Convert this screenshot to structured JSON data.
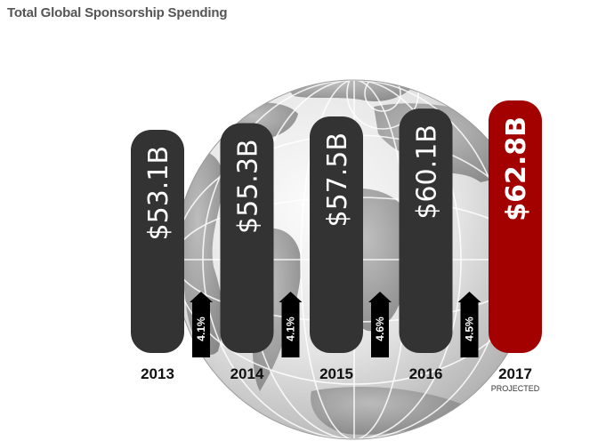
{
  "title": "Total Global Sponsorship Spending",
  "colors": {
    "bar": "#333333",
    "projected_bar": "#a30000",
    "arrow": "#000000",
    "globe_dark": "#8f8f8f",
    "globe_light": "#f2f2f2"
  },
  "chart_data": {
    "type": "bar",
    "title": "Total Global Sponsorship Spending",
    "xlabel": "",
    "ylabel": "",
    "unit": "$B",
    "categories": [
      "2013",
      "2014",
      "2015",
      "2016",
      "2017"
    ],
    "values": [
      53.1,
      55.3,
      57.5,
      60.1,
      62.8
    ],
    "value_labels": [
      "$53.1B",
      "$55.3B",
      "$57.5B",
      "$60.1B",
      "$62.8B"
    ],
    "category_sublabels": [
      "",
      "",
      "",
      "",
      "PROJECTED"
    ],
    "projected": [
      false,
      false,
      false,
      false,
      true
    ],
    "growth_labels": [
      "4.1%",
      "4.1%",
      "4.6%",
      "4.5%"
    ],
    "growth_values": [
      4.1,
      4.1,
      4.6,
      4.5
    ]
  }
}
